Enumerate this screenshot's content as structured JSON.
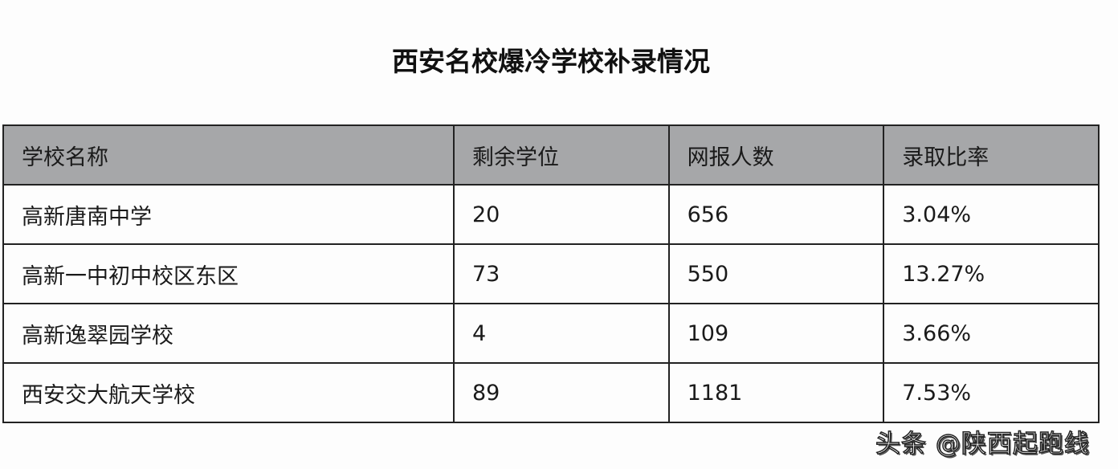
{
  "title": "西安名校爆冷学校补录情况",
  "table": {
    "headers": [
      "学校名称",
      "剩余学位",
      "网报人数",
      "录取比率"
    ],
    "rows": [
      [
        "高新唐南中学",
        "20",
        "656",
        "3.04%"
      ],
      [
        "高新一中初中校区东区",
        "73",
        "550",
        "13.27%"
      ],
      [
        "高新逸翠园学校",
        "4",
        "109",
        "3.66%"
      ],
      [
        "西安交大航天学校",
        "89",
        "1181",
        "7.53%"
      ]
    ]
  },
  "watermark": "头条 @陕西起跑线",
  "colors": {
    "header_bg": "#a6a7a9",
    "border": "#222222"
  }
}
